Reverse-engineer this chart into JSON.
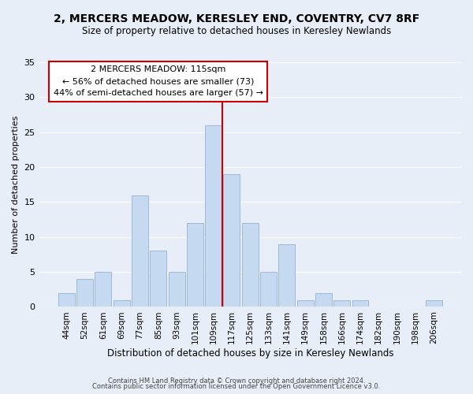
{
  "title": "2, MERCERS MEADOW, KERESLEY END, COVENTRY, CV7 8RF",
  "subtitle": "Size of property relative to detached houses in Keresley Newlands",
  "xlabel": "Distribution of detached houses by size in Keresley Newlands",
  "ylabel": "Number of detached properties",
  "footer_line1": "Contains HM Land Registry data © Crown copyright and database right 2024.",
  "footer_line2": "Contains public sector information licensed under the Open Government Licence v3.0.",
  "annotation_title": "2 MERCERS MEADOW: 115sqm",
  "annotation_line1": "← 56% of detached houses are smaller (73)",
  "annotation_line2": "44% of semi-detached houses are larger (57) →",
  "bar_labels": [
    "44sqm",
    "52sqm",
    "61sqm",
    "69sqm",
    "77sqm",
    "85sqm",
    "93sqm",
    "101sqm",
    "109sqm",
    "117sqm",
    "125sqm",
    "133sqm",
    "141sqm",
    "149sqm",
    "158sqm",
    "166sqm",
    "174sqm",
    "182sqm",
    "190sqm",
    "198sqm",
    "206sqm"
  ],
  "bar_values": [
    2,
    4,
    5,
    1,
    16,
    8,
    5,
    12,
    26,
    19,
    12,
    5,
    9,
    1,
    2,
    1,
    1,
    0,
    0,
    0,
    1
  ],
  "bar_color": "#c5d9f0",
  "bar_edge_color": "#a0b8d8",
  "reference_line_color": "#cc0000",
  "ylim": [
    0,
    35
  ],
  "yticks": [
    0,
    5,
    10,
    15,
    20,
    25,
    30,
    35
  ],
  "bg_color": "#e8eef8",
  "annotation_box_edge": "#cc0000",
  "grid_color": "#ffffff",
  "title_fontsize": 10,
  "subtitle_fontsize": 8.5
}
